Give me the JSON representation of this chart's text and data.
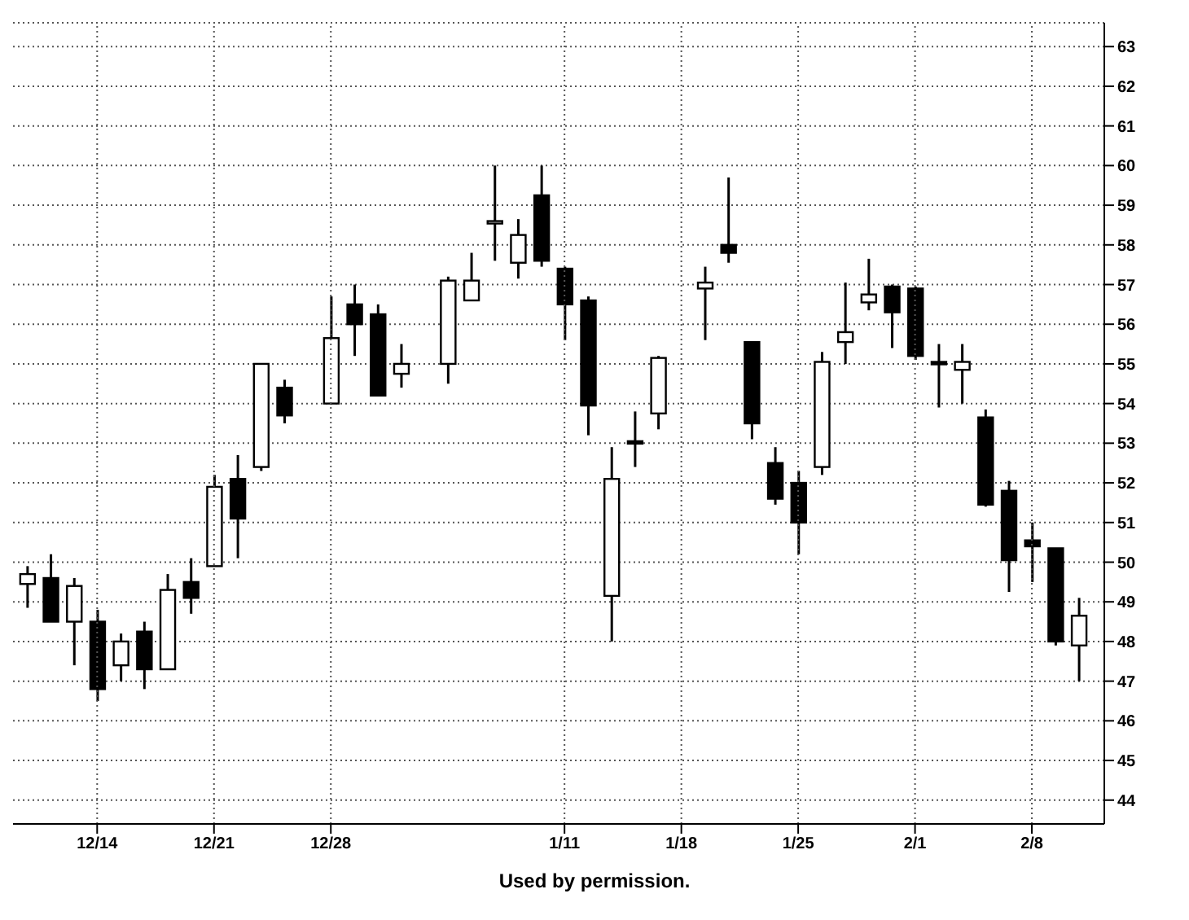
{
  "chart_data": {
    "type": "candlestick",
    "color": "#000000",
    "categories": [
      null,
      null,
      null,
      "12/14",
      null,
      null,
      null,
      null,
      "12/21",
      null,
      null,
      null,
      null,
      "12/28",
      null,
      null,
      null,
      null,
      null,
      null,
      null,
      null,
      null,
      "1/11",
      null,
      null,
      null,
      null,
      "1/18",
      null,
      null,
      null,
      null,
      "1/25",
      null,
      null,
      null,
      null,
      "2/1",
      null,
      null,
      null,
      null,
      "2/8",
      null,
      null
    ],
    "ohlc": [
      [
        49.45,
        49.9,
        48.85,
        49.7
      ],
      [
        49.6,
        50.2,
        48.5,
        48.5
      ],
      [
        48.5,
        49.6,
        47.4,
        49.4
      ],
      [
        48.5,
        48.8,
        46.5,
        46.8
      ],
      [
        47.4,
        48.2,
        47.0,
        48.0
      ],
      [
        48.25,
        48.5,
        46.8,
        47.3
      ],
      [
        47.3,
        49.7,
        47.3,
        49.3
      ],
      [
        49.5,
        50.1,
        48.7,
        49.1
      ],
      [
        49.9,
        52.2,
        49.9,
        51.9
      ],
      [
        52.1,
        52.7,
        50.1,
        51.1
      ],
      [
        52.4,
        55.0,
        52.3,
        55.0
      ],
      [
        54.4,
        54.6,
        53.5,
        53.7
      ],
      null,
      [
        54.0,
        56.7,
        54.0,
        55.65
      ],
      [
        56.5,
        57.0,
        55.2,
        56.0
      ],
      [
        56.25,
        56.5,
        54.2,
        54.2
      ],
      [
        54.75,
        55.5,
        54.4,
        55.0
      ],
      null,
      [
        55.0,
        57.2,
        54.5,
        57.1
      ],
      [
        56.6,
        57.8,
        56.6,
        57.1
      ],
      [
        58.55,
        60.0,
        57.6,
        58.6
      ],
      [
        57.55,
        58.65,
        57.15,
        58.25
      ],
      [
        59.25,
        60.0,
        57.45,
        57.6
      ],
      [
        57.4,
        57.45,
        55.6,
        56.5
      ],
      [
        56.6,
        56.7,
        53.2,
        53.95
      ],
      [
        49.15,
        52.9,
        48.0,
        52.1
      ],
      [
        53.05,
        53.8,
        52.4,
        53.0
      ],
      [
        53.75,
        55.2,
        53.35,
        55.15
      ],
      null,
      [
        56.9,
        57.45,
        55.6,
        57.05
      ],
      [
        58.0,
        59.7,
        57.55,
        57.8
      ],
      [
        55.55,
        55.55,
        53.1,
        53.5
      ],
      [
        52.5,
        52.9,
        51.45,
        51.6
      ],
      [
        52.0,
        52.3,
        50.2,
        51.0
      ],
      [
        52.4,
        55.3,
        52.2,
        55.05
      ],
      [
        55.55,
        57.05,
        55.0,
        55.8
      ],
      [
        56.55,
        57.65,
        56.35,
        56.75
      ],
      [
        56.95,
        57.0,
        55.4,
        56.3
      ],
      [
        56.9,
        56.95,
        55.1,
        55.2
      ],
      [
        55.05,
        55.5,
        53.9,
        55.0
      ],
      [
        54.85,
        55.5,
        54.0,
        55.05
      ],
      [
        53.65,
        53.85,
        51.4,
        51.45
      ],
      [
        51.8,
        52.05,
        49.25,
        50.05
      ],
      [
        50.55,
        51.0,
        49.5,
        50.4
      ],
      [
        50.35,
        50.35,
        47.9,
        48.0
      ],
      [
        47.9,
        49.1,
        47.0,
        48.65
      ]
    ],
    "ylim": [
      43.4,
      63.6
    ],
    "yticks": [
      44,
      45,
      46,
      47,
      48,
      49,
      50,
      51,
      52,
      53,
      54,
      55,
      56,
      57,
      58,
      59,
      60,
      61,
      62,
      63
    ],
    "grid": true,
    "annotations": [
      "Used by permission."
    ]
  }
}
